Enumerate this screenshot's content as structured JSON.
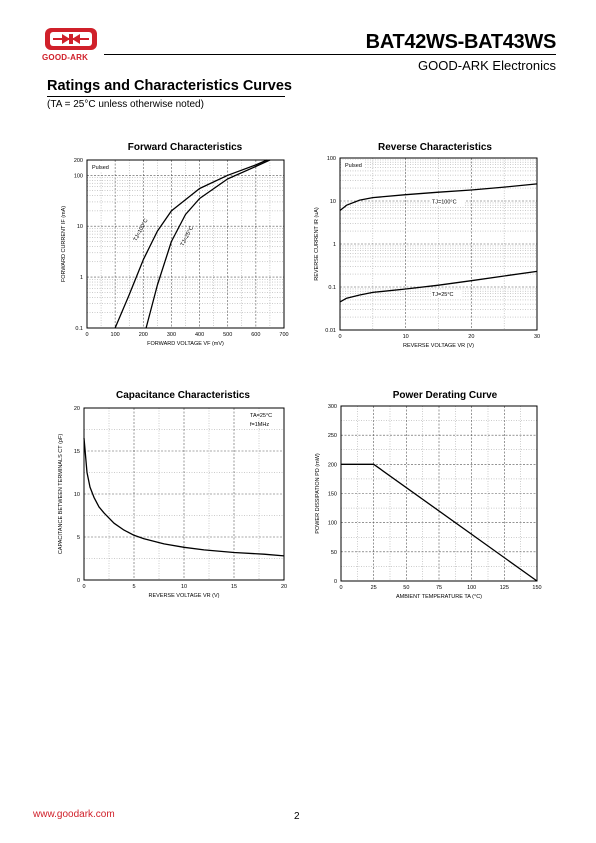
{
  "header": {
    "logo_text": "GOOD-ARK",
    "title": "BAT42WS-BAT43WS",
    "company": "GOOD-ARK Electronics"
  },
  "section": {
    "title": "Ratings and Characteristics Curves",
    "note": "(TA = 25°C unless otherwise noted)"
  },
  "footer": {
    "url": "www.goodark.com",
    "page": "2"
  },
  "colors": {
    "brand_red": "#d0202a",
    "curve": "#000000",
    "grid": "#808080"
  },
  "chart_data": [
    {
      "id": "forward",
      "type": "line",
      "title": "Forward  Characteristics",
      "xlabel": "FORWARD VOLTAGE  VF   (mV)",
      "ylabel": "FORWARD CURRENT   IF   (mA)",
      "xlim": [
        0,
        700
      ],
      "ylim": [
        0.1,
        200
      ],
      "yscale": "log",
      "xticks": [
        "0",
        "100",
        "200",
        "300",
        "400",
        "500",
        "600",
        "700"
      ],
      "xtick_values": [
        0,
        100,
        200,
        300,
        400,
        500,
        600,
        700
      ],
      "yticks": [
        "0.1",
        "1",
        "10",
        "100",
        "200"
      ],
      "ytick_values": [
        0.1,
        1,
        10,
        100,
        200
      ],
      "grid": true,
      "annotation": "Pulsed",
      "series": [
        {
          "name": "TJ=100°C",
          "x": [
            100,
            150,
            200,
            250,
            300,
            400,
            500,
            600,
            640
          ],
          "y": [
            0.1,
            0.45,
            2.2,
            8,
            20,
            55,
            100,
            160,
            200
          ]
        },
        {
          "name": "TJ=25°C",
          "x": [
            210,
            250,
            300,
            350,
            400,
            500,
            600,
            650
          ],
          "y": [
            0.1,
            0.7,
            5,
            17,
            35,
            85,
            150,
            200
          ]
        }
      ]
    },
    {
      "id": "reverse",
      "type": "line",
      "title": "Reverse    Characteristics",
      "xlabel": "REVERSE VOLTAGE   VR   (V)",
      "ylabel": "REVERSE CURRENT   IR   (uA)",
      "xlim": [
        0,
        30
      ],
      "ylim": [
        0.01,
        100
      ],
      "yscale": "log",
      "xticks": [
        "0",
        "10",
        "20",
        "30"
      ],
      "xtick_values": [
        0,
        10,
        20,
        30
      ],
      "yticks": [
        "0.01",
        "0.1",
        "1",
        "10",
        "100"
      ],
      "ytick_values": [
        0.01,
        0.1,
        1,
        10,
        100
      ],
      "grid": true,
      "annotation": "Pulsed",
      "series": [
        {
          "name": "TJ=100°C",
          "x": [
            0,
            1,
            3,
            5,
            10,
            15,
            20,
            25,
            30
          ],
          "y": [
            6,
            8,
            10.5,
            12,
            14,
            16,
            18,
            21,
            25
          ]
        },
        {
          "name": "TJ=25°C",
          "x": [
            0,
            1,
            3,
            5,
            10,
            15,
            20,
            25,
            30
          ],
          "y": [
            0.045,
            0.055,
            0.065,
            0.075,
            0.09,
            0.11,
            0.14,
            0.18,
            0.23
          ]
        }
      ]
    },
    {
      "id": "capacitance",
      "type": "line",
      "title": "Capacitance Characteristics",
      "xlabel": "REVERSE VOLTAGE   VR   (V)",
      "ylabel": "CAPACITANCE BETWEEN TERMINALS   CT   (pF)",
      "xlim": [
        0,
        20
      ],
      "ylim": [
        0,
        20
      ],
      "xticks": [
        "0",
        "5",
        "10",
        "15",
        "20"
      ],
      "xtick_values": [
        0,
        5,
        10,
        15,
        20
      ],
      "yticks": [
        "0",
        "5",
        "10",
        "15",
        "20"
      ],
      "ytick_values": [
        0,
        5,
        10,
        15,
        20
      ],
      "grid": true,
      "annotation_lines": [
        "TA=25°C",
        "f=1MHz"
      ],
      "series": [
        {
          "name": "CT",
          "x": [
            0,
            0.3,
            0.6,
            1,
            1.5,
            2,
            3,
            4,
            5,
            6,
            8,
            10,
            12,
            15,
            18,
            20
          ],
          "y": [
            16.5,
            12.5,
            10.8,
            9.6,
            8.5,
            7.8,
            6.6,
            5.8,
            5.2,
            4.8,
            4.2,
            3.8,
            3.5,
            3.2,
            3.0,
            2.8
          ]
        }
      ]
    },
    {
      "id": "derating",
      "type": "line",
      "title": "Power Derating Curve",
      "xlabel": "AMBIENT TEMPERATURE   TA   (°C)",
      "ylabel": "POWER DISSIPATION   PD   (mW)",
      "xlim": [
        0,
        150
      ],
      "ylim": [
        0,
        300
      ],
      "xticks": [
        "0",
        "25",
        "50",
        "75",
        "100",
        "125",
        "150"
      ],
      "xtick_values": [
        0,
        25,
        50,
        75,
        100,
        125,
        150
      ],
      "yticks": [
        "0",
        "50",
        "100",
        "150",
        "200",
        "250",
        "300"
      ],
      "ytick_values": [
        0,
        50,
        100,
        150,
        200,
        250,
        300
      ],
      "grid": true,
      "series": [
        {
          "name": "PD",
          "x": [
            0,
            25,
            150
          ],
          "y": [
            200,
            200,
            0
          ]
        }
      ]
    }
  ]
}
